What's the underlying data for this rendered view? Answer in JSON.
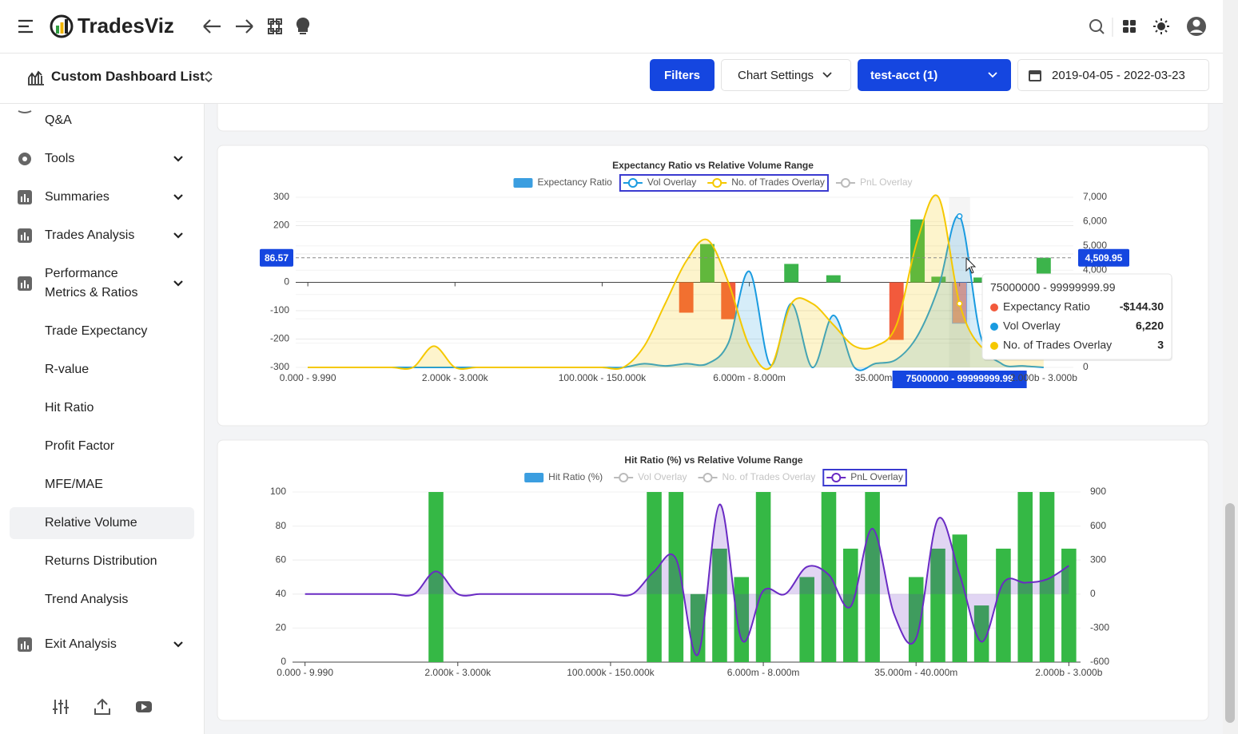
{
  "header": {
    "brand": "TradesViz"
  },
  "toolbar": {
    "dashboard": "Custom Dashboard List",
    "filters": "Filters",
    "chart_settings": "Chart Settings",
    "account": "test-acct (1)",
    "date_range": "2019-04-05 - 2022-03-23"
  },
  "sidebar": {
    "items": [
      {
        "label": "Q&A",
        "sub": false,
        "expandable": false
      },
      {
        "label": "Tools",
        "sub": false,
        "expandable": true
      },
      {
        "label": "Summaries",
        "sub": false,
        "expandable": true
      },
      {
        "label": "Trades Analysis",
        "sub": false,
        "expandable": true
      },
      {
        "label": "Performance Metrics & Ratios",
        "sub": false,
        "expandable": true
      },
      {
        "label": "Trade Expectancy",
        "sub": true,
        "expandable": false
      },
      {
        "label": "R-value",
        "sub": true,
        "expandable": false
      },
      {
        "label": "Hit Ratio",
        "sub": true,
        "expandable": false
      },
      {
        "label": "Profit Factor",
        "sub": true,
        "expandable": false
      },
      {
        "label": "MFE/MAE",
        "sub": true,
        "expandable": false
      },
      {
        "label": "Relative Volume",
        "sub": true,
        "expandable": false,
        "active": true
      },
      {
        "label": "Returns Distribution",
        "sub": true,
        "expandable": false
      },
      {
        "label": "Trend Analysis",
        "sub": true,
        "expandable": false
      },
      {
        "label": "Exit Analysis",
        "sub": false,
        "expandable": true
      }
    ]
  },
  "chart_data": [
    {
      "type": "bar",
      "title": "Expectancy Ratio  vs Relative Volume Range",
      "categories": [
        "0.000 - 9.990",
        null,
        null,
        null,
        null,
        null,
        null,
        "2.000k - 3.000k",
        null,
        null,
        null,
        null,
        null,
        null,
        "100.000k - 150.000k",
        null,
        null,
        null,
        null,
        null,
        null,
        "6.000m - 8.000m",
        null,
        null,
        null,
        null,
        null,
        null,
        "35.000m - 40.000m",
        null,
        null,
        "75000000 - 99999999.99",
        null,
        null,
        null,
        "2.000b - 3.000b"
      ],
      "series": [
        {
          "name": "Expectancy Ratio",
          "type": "bar",
          "axis": "y",
          "color": "#3cb44b",
          "negative_color": "#f25a3c",
          "legend_color": "#3b9ee0",
          "values": [
            0,
            0,
            0,
            0,
            0,
            0,
            0,
            0,
            0,
            0,
            0,
            0,
            0,
            0,
            0,
            0,
            0,
            0,
            -107,
            135,
            -130,
            0,
            0,
            65,
            0,
            25,
            0,
            0,
            -203,
            222,
            20,
            -144.3,
            17,
            0,
            0,
            87
          ]
        },
        {
          "name": "Vol Overlay",
          "type": "line",
          "axis": "y2",
          "color": "#1a9be0",
          "fill": "rgba(26,155,224,0.18)",
          "values": [
            0,
            0,
            0,
            0,
            0,
            0,
            0,
            0,
            0,
            0,
            0,
            0,
            0,
            0,
            0,
            0,
            150,
            60,
            150,
            150,
            1000,
            3950,
            100,
            2630,
            0,
            2140,
            0,
            160,
            330,
            1300,
            3300,
            6220,
            1300,
            150,
            60,
            0
          ]
        },
        {
          "name": "No. of Trades Overlay",
          "type": "line",
          "axis": "y3",
          "color": "#f5c800",
          "fill": "rgba(245,200,0,0.2)",
          "values": [
            0,
            0,
            0,
            0,
            0,
            0,
            1,
            0,
            0,
            0,
            0,
            0,
            0,
            0,
            0,
            0,
            1,
            3,
            5,
            6,
            4,
            1,
            0,
            3,
            3,
            2,
            1,
            1,
            2,
            6,
            8,
            3,
            1,
            1,
            1,
            1
          ]
        },
        {
          "name": "PnL Overlay",
          "type": "line",
          "axis": "y2",
          "color": "#bbbbbb",
          "hidden": true
        }
      ],
      "ylim": [
        -300,
        300
      ],
      "yticks": [
        -300,
        -200,
        -100,
        0,
        100,
        200,
        300
      ],
      "y2lim": [
        0,
        7000
      ],
      "y2ticks": [
        0,
        {
          "value": 1000,
          "label": "1,000"
        },
        {
          "value": 2000,
          "label": "2,000"
        },
        {
          "value": 3000,
          "label": "3,000"
        },
        {
          "value": 4000,
          "label": "4,000"
        },
        {
          "value": 5000,
          "label": "5,000"
        },
        {
          "value": 6000,
          "label": "6,000"
        },
        {
          "value": 7000,
          "label": "7,000"
        }
      ],
      "y3lim": [
        0,
        8
      ],
      "grid": true,
      "crosshair": {
        "y": 86.57,
        "y2": {
          "value": 4509.95,
          "label": "4,509.95"
        }
      },
      "tooltip": {
        "labels": [
          "-$144.30",
          "6,220",
          "3"
        ]
      }
    },
    {
      "type": "bar",
      "title": "Hit Ratio (%)  vs Relative Volume Range",
      "categories": [
        "0.000 - 9.990",
        null,
        null,
        null,
        null,
        null,
        null,
        "2.000k - 3.000k",
        null,
        null,
        null,
        null,
        null,
        null,
        "100.000k - 150.000k",
        null,
        null,
        null,
        null,
        null,
        null,
        "6.000m - 8.000m",
        null,
        null,
        null,
        null,
        null,
        null,
        "35.000m - 40.000m",
        null,
        null,
        null,
        null,
        null,
        null,
        "2.000b - 3.000b"
      ],
      "series": [
        {
          "name": "Hit Ratio (%)",
          "type": "bar",
          "axis": "y",
          "color": "#35b845",
          "legend_color": "#3b9ee0",
          "values": [
            0,
            0,
            0,
            0,
            0,
            0,
            100,
            0,
            0,
            0,
            0,
            0,
            0,
            0,
            0,
            0,
            100,
            100,
            40,
            66.7,
            50,
            100,
            0,
            50,
            100,
            66.7,
            100,
            0,
            50,
            66.7,
            75,
            33.3,
            66.7,
            100,
            100,
            66.7
          ]
        },
        {
          "name": "Vol Overlay",
          "type": "line",
          "axis": "y2",
          "color": "#bbbbbb",
          "hidden": true
        },
        {
          "name": "No. of Trades Overlay",
          "type": "line",
          "axis": "y2",
          "color": "#bbbbbb",
          "hidden": true
        },
        {
          "name": "PnL Overlay",
          "type": "line",
          "axis": "y2",
          "color": "#6a2bc4",
          "fill": "rgba(106,43,196,0.2)",
          "values": [
            0,
            0,
            0,
            0,
            0,
            0,
            200,
            0,
            0,
            0,
            0,
            0,
            0,
            0,
            0,
            0,
            200,
            310,
            -535,
            790,
            -400,
            30,
            0,
            240,
            170,
            -110,
            577,
            -180,
            -390,
            660,
            170,
            -420,
            100,
            100,
            130,
            250
          ]
        }
      ],
      "ylim": [
        0,
        100
      ],
      "yticks": [
        0,
        20,
        40,
        60,
        80,
        100
      ],
      "y2lim": [
        -600,
        900
      ],
      "y2ticks": [
        -600,
        -300,
        0,
        300,
        600,
        900
      ],
      "grid": true
    }
  ]
}
